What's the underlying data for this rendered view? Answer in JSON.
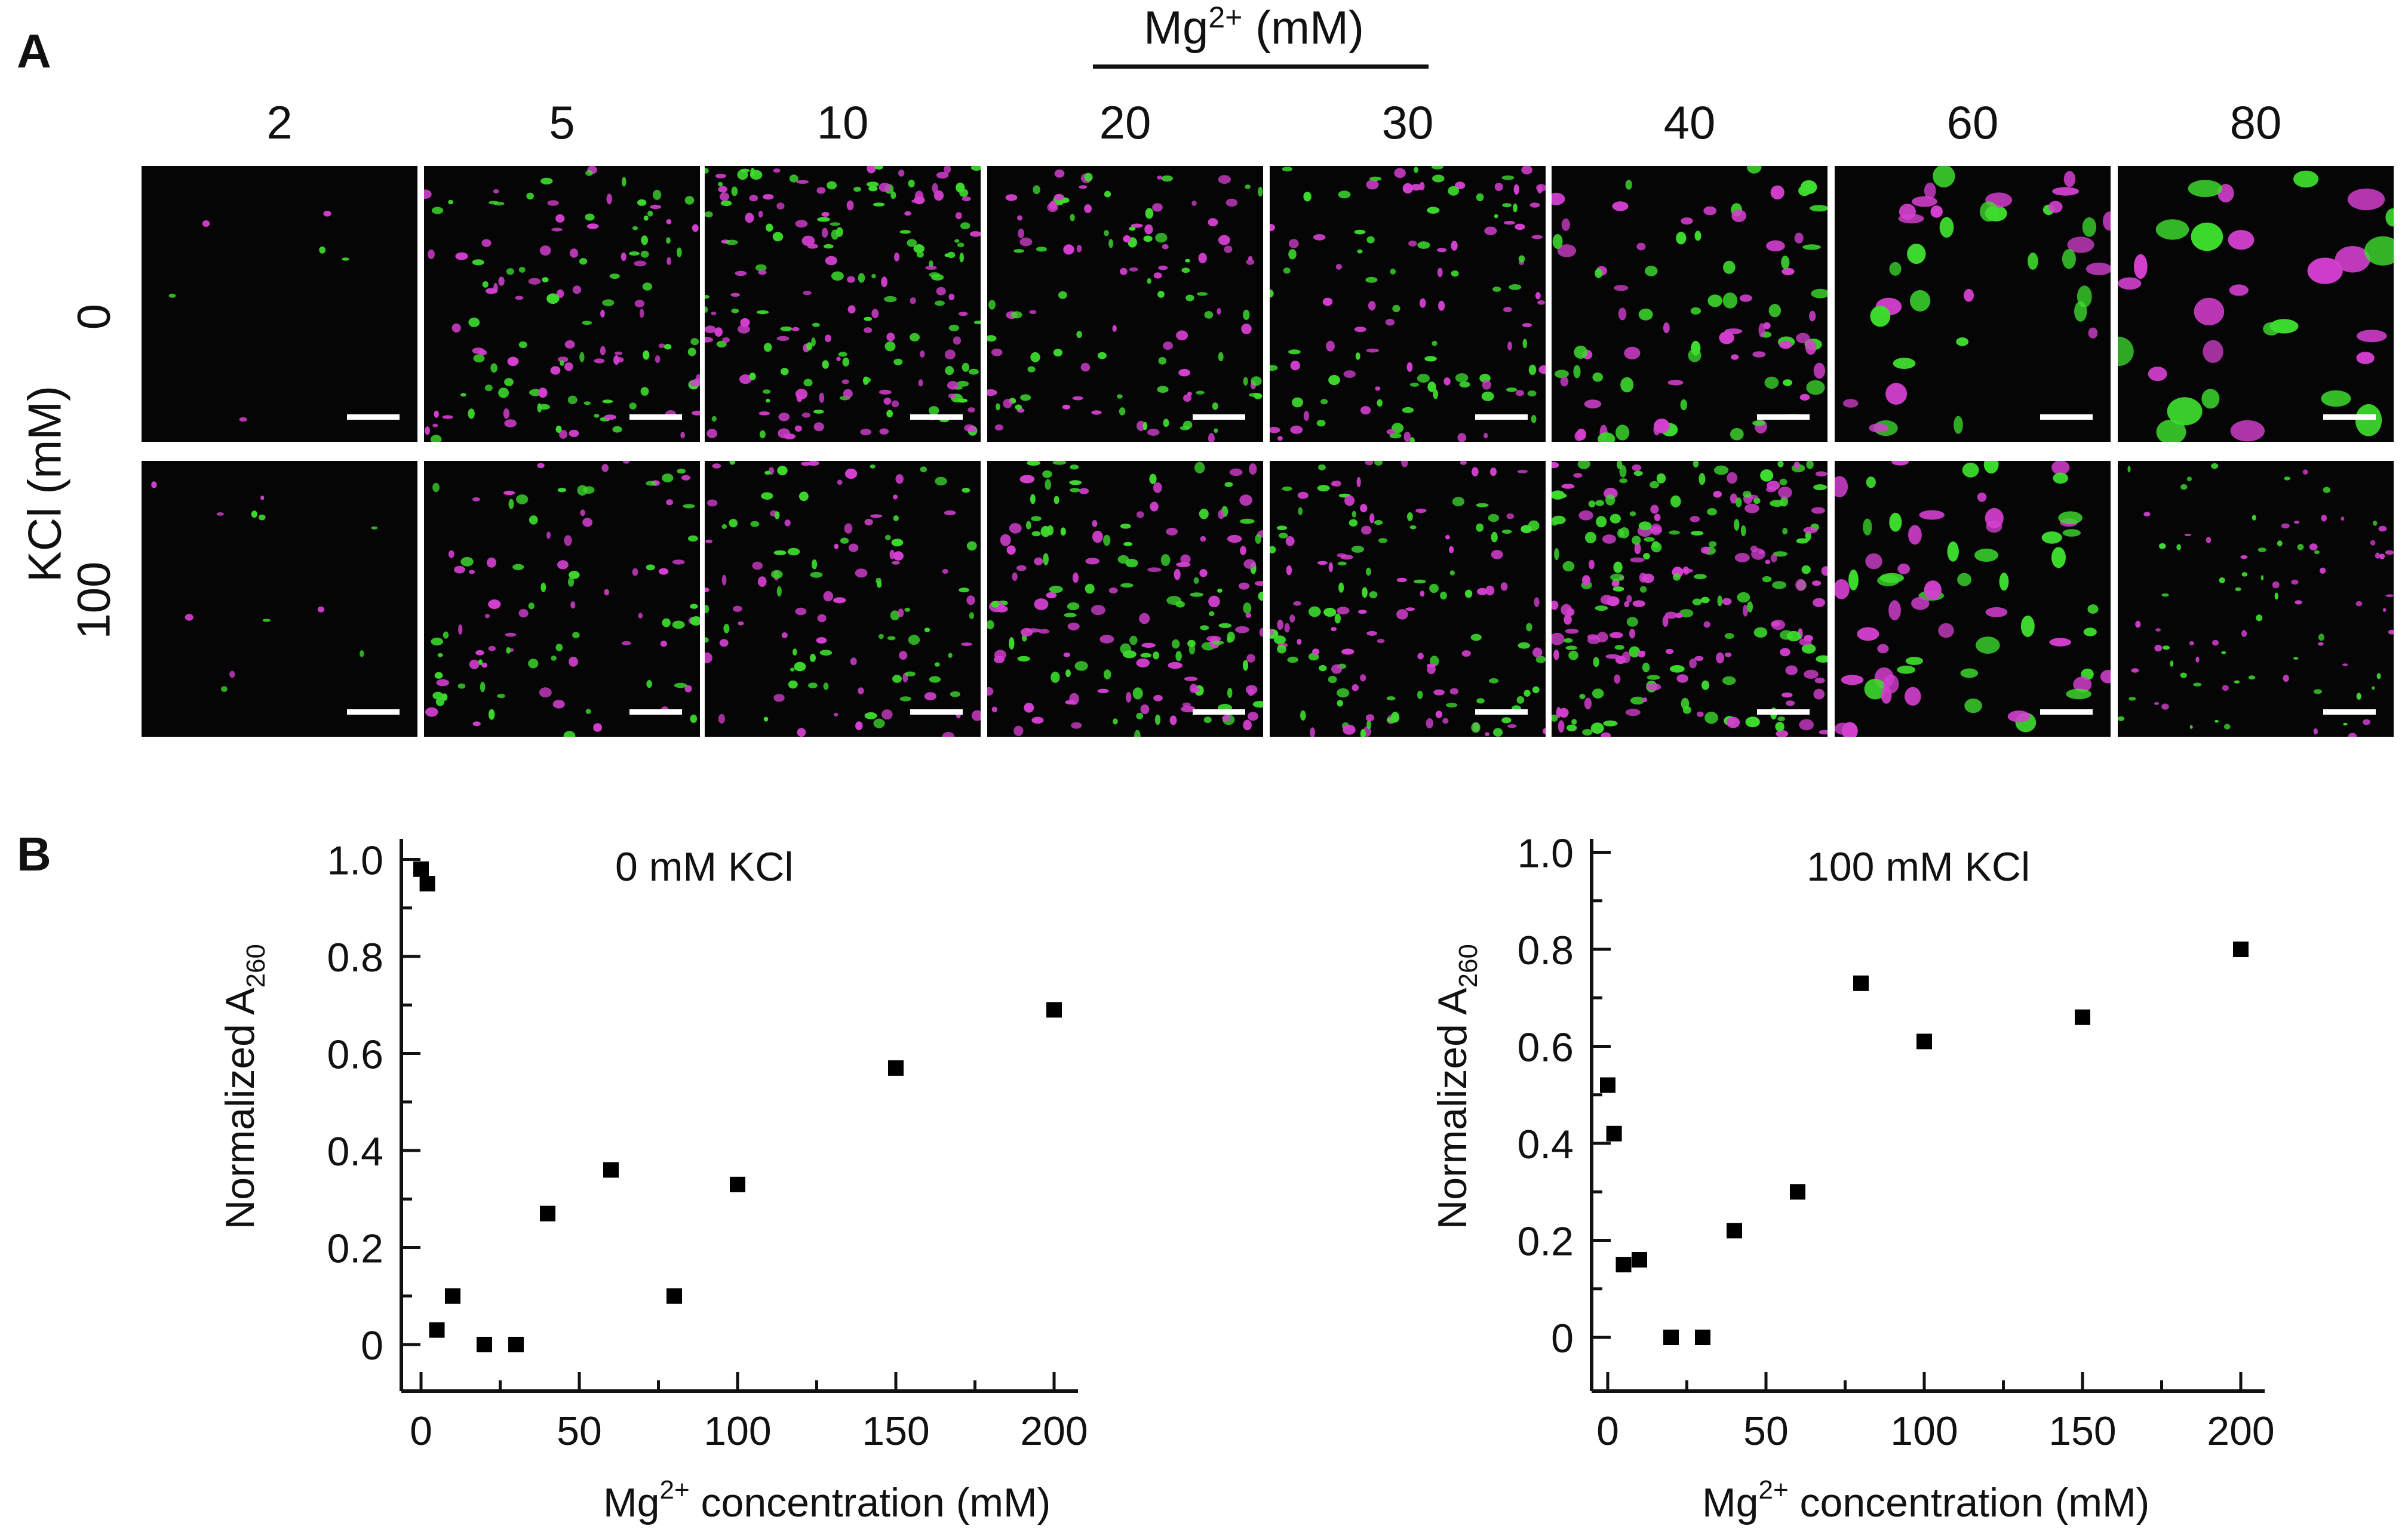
{
  "panel_a": {
    "letter": "A",
    "column_axis_title": "Mg2+ (mM)",
    "column_axis_title_parts": {
      "base": "Mg",
      "sup": "2+",
      "rest": " (mM)"
    },
    "columns": [
      "2",
      "5",
      "10",
      "20",
      "30",
      "40",
      "60",
      "80"
    ],
    "row_axis_title": "KCl (mM)",
    "rows": [
      "0",
      "100"
    ],
    "channel_colors": {
      "green": "#3ddc2e",
      "magenta": "#d43fcf",
      "background": "#050505",
      "scale_bar": "#ffffff"
    }
  },
  "panel_b": {
    "letter": "B"
  },
  "chart_data": [
    {
      "type": "scatter",
      "title": "0 mM KCl",
      "xlabel": "Mg2+ concentration (mM)",
      "xlabel_parts": {
        "base": "Mg",
        "sup": "2+",
        "rest": " concentration (mM)"
      },
      "ylabel": "Normalized A260",
      "ylabel_parts": {
        "base": "Normalized A",
        "sub": "260"
      },
      "xlim": [
        0,
        200
      ],
      "ylim": [
        -0.1,
        1.0
      ],
      "xticks": [
        "0",
        "50",
        "100",
        "150",
        "200"
      ],
      "xtick_values": [
        0,
        50,
        100,
        150,
        200
      ],
      "yticks": [
        "0",
        "0.2",
        "0.4",
        "0.6",
        "0.8",
        "1.0"
      ],
      "ytick_values": [
        0,
        0.2,
        0.4,
        0.6,
        0.8,
        1.0
      ],
      "marker_color": "#000000",
      "x": [
        0,
        2,
        5,
        10,
        20,
        30,
        40,
        60,
        80,
        100,
        150,
        200
      ],
      "y": [
        0.98,
        0.95,
        0.03,
        0.1,
        0.0,
        0.0,
        0.27,
        0.36,
        0.1,
        0.33,
        0.57,
        0.69
      ]
    },
    {
      "type": "scatter",
      "title": "100 mM KCl",
      "xlabel": "Mg2+ concentration (mM)",
      "xlabel_parts": {
        "base": "Mg",
        "sup": "2+",
        "rest": " concentration (mM)"
      },
      "ylabel": "Normalized A260",
      "ylabel_parts": {
        "base": "Normalized A",
        "sub": "260"
      },
      "xlim": [
        0,
        200
      ],
      "ylim": [
        -0.1,
        1.0
      ],
      "xticks": [
        "0",
        "50",
        "100",
        "150",
        "200"
      ],
      "xtick_values": [
        0,
        50,
        100,
        150,
        200
      ],
      "yticks": [
        "0",
        "0.2",
        "0.4",
        "0.6",
        "0.8",
        "1.0"
      ],
      "ytick_values": [
        0,
        0.2,
        0.4,
        0.6,
        0.8,
        1.0
      ],
      "marker_color": "#000000",
      "x": [
        0,
        2,
        5,
        10,
        20,
        30,
        40,
        60,
        80,
        100,
        150,
        200
      ],
      "y": [
        0.52,
        0.42,
        0.15,
        0.16,
        0.0,
        0.0,
        0.22,
        0.3,
        0.73,
        0.61,
        0.66,
        0.8
      ]
    }
  ]
}
